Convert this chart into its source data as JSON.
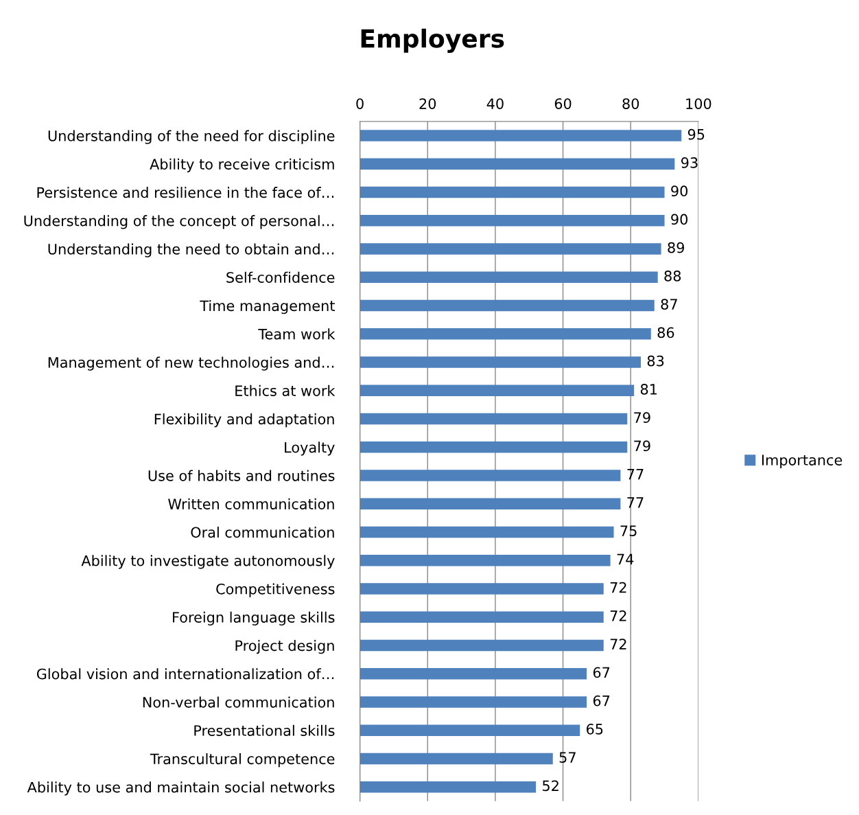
{
  "chart_data": {
    "type": "bar",
    "title": "Employers",
    "orientation": "horizontal",
    "categories": [
      "Understanding of the need for discipline",
      "Ability to receive criticism",
      "Persistence and resilience in the face of…",
      "Understanding of the concept of personal…",
      "Understanding the need to obtain and…",
      "Self-confidence",
      "Time management",
      "Team work",
      "Management of new technologies and…",
      "Ethics at work",
      "Flexibility and adaptation",
      "Loyalty",
      "Use of habits and routines",
      "Written communication",
      "Oral communication",
      "Ability to investigate autonomously",
      "Competitiveness",
      "Foreign language skills",
      "Project design",
      "Global vision and internationalization of…",
      "Non-verbal communication",
      "Presentational skills",
      "Transcultural competence",
      "Ability to use and maintain social networks"
    ],
    "series": [
      {
        "name": "Importance",
        "color": "#4f81bd",
        "values": [
          95,
          93,
          90,
          90,
          89,
          88,
          87,
          86,
          83,
          81,
          79,
          79,
          77,
          77,
          75,
          74,
          72,
          72,
          72,
          67,
          67,
          65,
          57,
          52
        ]
      }
    ],
    "xlim": [
      0,
      100
    ],
    "xticks": [
      0,
      20,
      40,
      60,
      80,
      100
    ],
    "grid": "x",
    "legend": "right",
    "data_labels": true
  }
}
